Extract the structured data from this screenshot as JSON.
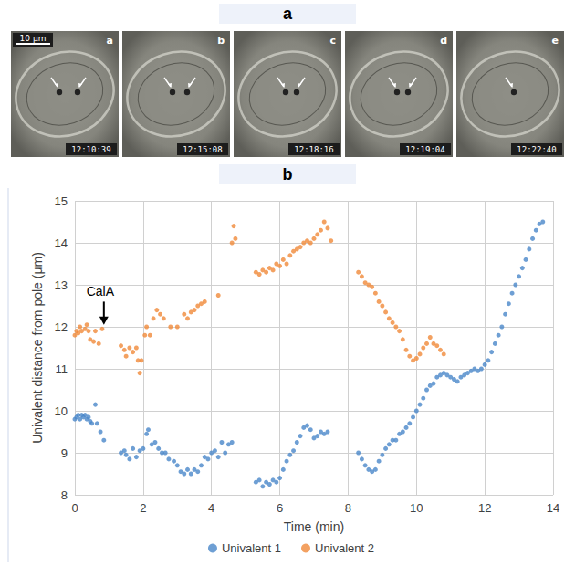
{
  "panel_a": {
    "label": "a",
    "scale_bar": "10 μm",
    "frames": [
      {
        "label": "a",
        "timestamp": "12:10:39"
      },
      {
        "label": "b",
        "timestamp": "12:15:08"
      },
      {
        "label": "c",
        "timestamp": "12:18:16"
      },
      {
        "label": "d",
        "timestamp": "12:19:04"
      },
      {
        "label": "e",
        "timestamp": "12:22:40"
      }
    ]
  },
  "panel_b": {
    "label": "b"
  },
  "chart_data": {
    "type": "scatter",
    "x_label": "Time (min)",
    "y_label": "Univalent distance from pole (μm)",
    "xlim": [
      0,
      14
    ],
    "xticks": [
      0,
      2,
      4,
      6,
      8,
      10,
      12,
      14
    ],
    "ylim": [
      8,
      15
    ],
    "yticks": [
      8,
      9,
      10,
      11,
      12,
      13,
      14,
      15
    ],
    "grid": true,
    "legend": "bottom",
    "marker": "circle",
    "annotations": [
      {
        "text": "CalA",
        "x": 0.85,
        "y": 12.6,
        "arrow_to": {
          "x": 0.85,
          "y": 12.05
        }
      }
    ],
    "series": [
      {
        "name": "Univalent 1",
        "color": "#4a87c9",
        "x": [
          0.0,
          0.05,
          0.1,
          0.15,
          0.2,
          0.25,
          0.3,
          0.35,
          0.4,
          0.45,
          0.5,
          0.6,
          0.65,
          0.75,
          0.85,
          1.35,
          1.45,
          1.5,
          1.6,
          1.7,
          1.8,
          1.9,
          2.0,
          2.1,
          2.15,
          2.25,
          2.35,
          2.45,
          2.55,
          2.65,
          2.75,
          2.9,
          3.0,
          3.1,
          3.2,
          3.3,
          3.4,
          3.5,
          3.6,
          3.7,
          3.8,
          3.9,
          4.0,
          4.1,
          4.2,
          4.3,
          4.4,
          4.5,
          4.6,
          5.3,
          5.4,
          5.5,
          5.6,
          5.7,
          5.8,
          5.9,
          6.0,
          6.1,
          6.2,
          6.3,
          6.4,
          6.5,
          6.6,
          6.7,
          6.8,
          6.9,
          7.0,
          7.1,
          7.2,
          7.3,
          7.4,
          8.3,
          8.4,
          8.5,
          8.6,
          8.7,
          8.8,
          8.9,
          9.0,
          9.1,
          9.2,
          9.3,
          9.4,
          9.5,
          9.6,
          9.7,
          9.8,
          9.9,
          10.0,
          10.1,
          10.2,
          10.3,
          10.4,
          10.5,
          10.6,
          10.7,
          10.8,
          10.9,
          11.0,
          11.1,
          11.2,
          11.3,
          11.4,
          11.5,
          11.6,
          11.7,
          11.8,
          11.9,
          12.0,
          12.1,
          12.2,
          12.3,
          12.4,
          12.5,
          12.6,
          12.7,
          12.8,
          12.9,
          13.0,
          13.1,
          13.2,
          13.3,
          13.4,
          13.5,
          13.6,
          13.7
        ],
        "values": [
          9.8,
          9.85,
          9.9,
          9.8,
          9.9,
          9.85,
          9.9,
          9.8,
          9.85,
          9.75,
          9.7,
          10.15,
          9.7,
          9.5,
          9.3,
          9.0,
          9.05,
          8.95,
          8.85,
          9.1,
          8.9,
          9.05,
          9.1,
          9.45,
          9.55,
          9.2,
          9.25,
          9.1,
          9.0,
          9.0,
          8.85,
          8.8,
          8.7,
          8.55,
          8.5,
          8.6,
          8.5,
          8.6,
          8.55,
          8.7,
          8.9,
          8.85,
          9.0,
          9.05,
          8.9,
          9.25,
          9.0,
          9.2,
          9.25,
          8.3,
          8.35,
          8.2,
          8.3,
          8.25,
          8.35,
          8.3,
          8.4,
          8.6,
          8.8,
          8.95,
          9.05,
          9.25,
          9.4,
          9.6,
          9.65,
          9.55,
          9.35,
          9.4,
          9.5,
          9.45,
          9.5,
          9.0,
          8.85,
          8.7,
          8.6,
          8.55,
          8.6,
          8.8,
          8.95,
          9.1,
          9.2,
          9.3,
          9.3,
          9.45,
          9.5,
          9.6,
          9.7,
          9.85,
          10.0,
          10.15,
          10.3,
          10.5,
          10.6,
          10.65,
          10.8,
          10.85,
          10.9,
          10.85,
          10.8,
          10.75,
          10.7,
          10.8,
          10.85,
          10.9,
          10.95,
          11.0,
          10.95,
          11.0,
          11.1,
          11.2,
          11.4,
          11.6,
          11.8,
          12.0,
          12.3,
          12.55,
          12.8,
          13.0,
          13.2,
          13.4,
          13.6,
          13.85,
          14.1,
          14.3,
          14.45,
          14.5
        ]
      },
      {
        "name": "Univalent 2",
        "color": "#f08a3a",
        "x": [
          0.0,
          0.05,
          0.1,
          0.15,
          0.2,
          0.3,
          0.35,
          0.4,
          0.45,
          0.55,
          0.6,
          0.7,
          0.8,
          1.35,
          1.45,
          1.5,
          1.6,
          1.7,
          1.8,
          1.85,
          1.9,
          1.95,
          2.05,
          2.1,
          2.2,
          2.3,
          2.4,
          2.5,
          2.6,
          2.8,
          3.0,
          3.2,
          3.3,
          3.4,
          3.5,
          3.6,
          3.7,
          3.8,
          4.2,
          4.6,
          4.65,
          4.7,
          5.3,
          5.4,
          5.5,
          5.6,
          5.7,
          5.8,
          5.9,
          6.0,
          6.1,
          6.2,
          6.3,
          6.4,
          6.5,
          6.6,
          6.7,
          6.8,
          6.9,
          7.0,
          7.1,
          7.2,
          7.3,
          7.4,
          7.5,
          8.3,
          8.4,
          8.5,
          8.6,
          8.7,
          8.8,
          8.9,
          9.0,
          9.1,
          9.2,
          9.3,
          9.4,
          9.5,
          9.6,
          9.7,
          9.8,
          9.9,
          10.0,
          10.1,
          10.2,
          10.3,
          10.4,
          10.5,
          10.6,
          10.7,
          10.8
        ],
        "values": [
          11.8,
          11.9,
          11.85,
          12.0,
          11.9,
          11.95,
          12.05,
          11.9,
          11.7,
          11.65,
          11.9,
          11.6,
          11.95,
          11.55,
          11.45,
          11.3,
          11.5,
          11.4,
          11.5,
          11.2,
          10.9,
          11.2,
          11.8,
          12.0,
          11.8,
          12.2,
          12.4,
          12.3,
          12.2,
          12.0,
          12.0,
          12.3,
          12.2,
          12.35,
          12.4,
          12.5,
          12.55,
          12.6,
          12.75,
          14.0,
          14.4,
          14.1,
          13.3,
          13.25,
          13.35,
          13.3,
          13.4,
          13.35,
          13.5,
          13.45,
          13.6,
          13.5,
          13.7,
          13.8,
          13.85,
          13.9,
          14.0,
          14.05,
          14.0,
          14.1,
          14.2,
          14.3,
          14.5,
          14.35,
          14.05,
          13.3,
          13.2,
          13.05,
          13.0,
          12.95,
          12.8,
          12.6,
          12.5,
          12.35,
          12.2,
          12.1,
          12.0,
          11.9,
          11.7,
          11.45,
          11.3,
          11.2,
          11.25,
          11.35,
          11.5,
          11.6,
          11.75,
          11.6,
          11.55,
          11.45,
          11.35
        ]
      }
    ]
  }
}
